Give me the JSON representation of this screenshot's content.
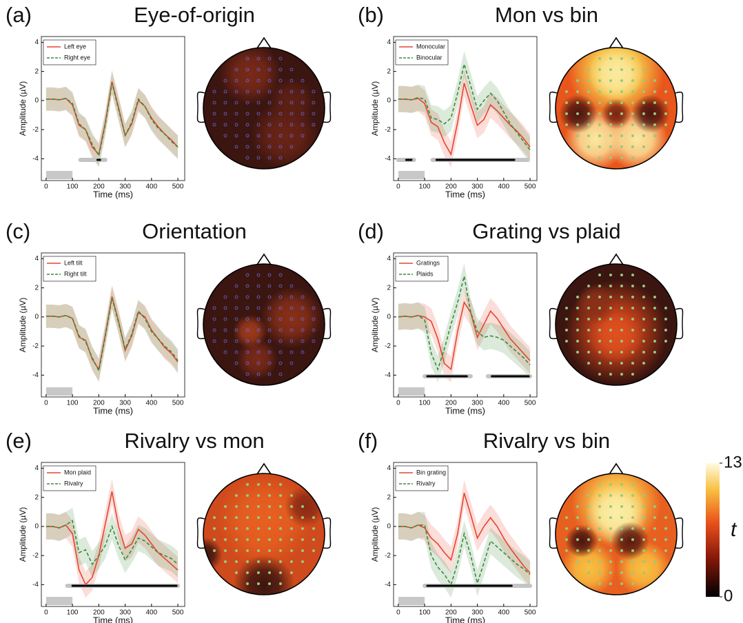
{
  "chart_data": [
    {
      "type": "line",
      "panel_label": "(a)",
      "title": "Eye-of-origin",
      "xlabel": "Time (ms)",
      "ylabel": "Amplitude (µV)",
      "x": [
        0,
        25,
        50,
        75,
        100,
        125,
        150,
        175,
        200,
        225,
        250,
        275,
        300,
        325,
        350,
        375,
        400,
        425,
        450,
        475,
        500
      ],
      "xlim": [
        -18,
        526
      ],
      "ylim": [
        -5.5,
        4.4
      ],
      "xticks": [
        0,
        100,
        200,
        300,
        400,
        500
      ],
      "yticks": [
        -4,
        -2,
        0,
        2,
        4
      ],
      "stimulus": [
        0,
        100
      ],
      "significance": [
        [
          130,
          225
        ]
      ],
      "significance_strong": [
        [
          195,
          205
        ]
      ],
      "series": [
        {
          "name": "Left eye",
          "color": "#e8442c",
          "dash": false,
          "error": 0.8,
          "values": [
            0.1,
            0.1,
            0.05,
            0.15,
            -0.3,
            -1.7,
            -2.0,
            -3.2,
            -3.7,
            -1.5,
            1.3,
            -0.5,
            -2.4,
            -1.6,
            0.0,
            -0.4,
            -1.2,
            -1.8,
            -2.3,
            -2.7,
            -3.2
          ]
        },
        {
          "name": "Right eye",
          "color": "#3a8a3a",
          "dash": true,
          "error": 0.8,
          "values": [
            0.1,
            0.1,
            0.05,
            0.15,
            -0.2,
            -1.6,
            -2.0,
            -3.0,
            -3.8,
            -1.6,
            1.2,
            -0.6,
            -2.4,
            -1.5,
            0.1,
            -0.4,
            -1.3,
            -1.9,
            -2.3,
            -2.8,
            -3.2
          ]
        }
      ]
    },
    {
      "type": "line",
      "panel_label": "(b)",
      "title": "Mon vs bin",
      "xlabel": "Time (ms)",
      "ylabel": "Amplitude (µV)",
      "x": [
        0,
        25,
        50,
        75,
        100,
        125,
        150,
        175,
        200,
        225,
        250,
        275,
        300,
        325,
        350,
        375,
        400,
        425,
        450,
        475,
        500
      ],
      "xlim": [
        -18,
        526
      ],
      "ylim": [
        -5.5,
        4.4
      ],
      "xticks": [
        0,
        100,
        200,
        300,
        400,
        500
      ],
      "yticks": [
        -4,
        -2,
        0,
        2,
        4
      ],
      "stimulus": [
        0,
        100
      ],
      "significance": [
        [
          0,
          60
        ],
        [
          130,
          490
        ]
      ],
      "significance_strong": [
        [
          30,
          50
        ],
        [
          145,
          440
        ]
      ],
      "series": [
        {
          "name": "Monocular",
          "color": "#e8442c",
          "dash": false,
          "error": 0.9,
          "values": [
            0.1,
            0.1,
            0.05,
            0.15,
            -0.2,
            -1.5,
            -1.8,
            -2.9,
            -3.7,
            -1.5,
            1.2,
            -0.3,
            -1.7,
            -1.3,
            -0.3,
            -0.7,
            -1.2,
            -1.7,
            -2.1,
            -2.6,
            -3.2
          ]
        },
        {
          "name": "Binocular",
          "color": "#3a8a3a",
          "dash": true,
          "error": 0.9,
          "values": [
            0.1,
            0.1,
            0.05,
            0.2,
            0.1,
            -1.2,
            -1.3,
            -1.6,
            -1.2,
            0.5,
            2.5,
            1.0,
            -0.6,
            0.0,
            0.5,
            0.0,
            -0.8,
            -1.6,
            -2.2,
            -2.8,
            -3.4
          ]
        }
      ]
    },
    {
      "type": "line",
      "panel_label": "(c)",
      "title": "Orientation",
      "xlabel": "Time (ms)",
      "ylabel": "Amplitude (µV)",
      "x": [
        0,
        25,
        50,
        75,
        100,
        125,
        150,
        175,
        200,
        225,
        250,
        275,
        300,
        325,
        350,
        375,
        400,
        425,
        450,
        475,
        500
      ],
      "xlim": [
        -18,
        526
      ],
      "ylim": [
        -5.5,
        4.4
      ],
      "xticks": [
        0,
        100,
        200,
        300,
        400,
        500
      ],
      "yticks": [
        -4,
        -2,
        0,
        2,
        4
      ],
      "stimulus": [
        0,
        100
      ],
      "significance": [],
      "significance_strong": [],
      "series": [
        {
          "name": "Left tilt",
          "color": "#e8442c",
          "dash": false,
          "error": 0.8,
          "values": [
            0.05,
            0.05,
            0.0,
            0.1,
            -0.1,
            -1.4,
            -1.6,
            -2.9,
            -3.6,
            -1.2,
            1.4,
            -0.3,
            -2.3,
            -1.3,
            0.3,
            0.0,
            -0.9,
            -1.5,
            -2.1,
            -2.5,
            -3.1
          ]
        },
        {
          "name": "Right tilt",
          "color": "#3a8a3a",
          "dash": true,
          "error": 0.8,
          "values": [
            0.05,
            0.05,
            0.0,
            0.1,
            -0.1,
            -1.3,
            -1.7,
            -2.8,
            -3.7,
            -1.3,
            1.3,
            -0.4,
            -2.2,
            -1.2,
            0.4,
            -0.1,
            -1.0,
            -1.5,
            -2.0,
            -2.4,
            -3.0
          ]
        }
      ]
    },
    {
      "type": "line",
      "panel_label": "(d)",
      "title": "Grating vs plaid",
      "xlabel": "Time (ms)",
      "ylabel": "Amplitude (µV)",
      "x": [
        0,
        25,
        50,
        75,
        100,
        125,
        150,
        175,
        200,
        225,
        250,
        275,
        300,
        325,
        350,
        375,
        400,
        425,
        450,
        475,
        500
      ],
      "xlim": [
        -18,
        526
      ],
      "ylim": [
        -5.5,
        4.4
      ],
      "xticks": [
        0,
        100,
        200,
        300,
        400,
        500
      ],
      "yticks": [
        -4,
        -2,
        0,
        2,
        4
      ],
      "stimulus": [
        0,
        100
      ],
      "significance": [
        [
          100,
          275
        ],
        [
          340,
          500
        ]
      ],
      "significance_strong": [
        [
          110,
          260
        ],
        [
          355,
          495
        ]
      ],
      "series": [
        {
          "name": "Gratings",
          "color": "#e8442c",
          "dash": false,
          "error": 0.9,
          "values": [
            0.0,
            0.05,
            0.0,
            0.1,
            0.0,
            -0.3,
            -1.5,
            -3.2,
            -3.6,
            -1.0,
            1.0,
            0.3,
            -1.4,
            -0.5,
            0.4,
            -0.1,
            -0.8,
            -1.5,
            -2.0,
            -2.5,
            -3.0
          ]
        },
        {
          "name": "Plaids",
          "color": "#3a8a3a",
          "dash": true,
          "error": 0.9,
          "values": [
            0.0,
            0.05,
            0.0,
            0.1,
            -0.2,
            -2.5,
            -3.6,
            -2.2,
            -0.5,
            1.0,
            2.8,
            0.3,
            -1.0,
            -1.4,
            -1.3,
            -1.4,
            -1.6,
            -2.0,
            -2.4,
            -2.8,
            -3.3
          ]
        }
      ]
    },
    {
      "type": "line",
      "panel_label": "(e)",
      "title": "Rivalry vs mon",
      "xlabel": "Time (ms)",
      "ylabel": "Amplitude (µV)",
      "x": [
        0,
        25,
        50,
        75,
        100,
        125,
        150,
        175,
        200,
        225,
        250,
        275,
        300,
        325,
        350,
        375,
        400,
        425,
        450,
        475,
        500
      ],
      "xlim": [
        -18,
        526
      ],
      "ylim": [
        -5.5,
        4.4
      ],
      "xticks": [
        0,
        100,
        200,
        300,
        400,
        500
      ],
      "yticks": [
        -4,
        -2,
        0,
        2,
        4
      ],
      "stimulus": [
        0,
        100
      ],
      "significance": [
        [
          80,
          500
        ]
      ],
      "significance_strong": [
        [
          100,
          495
        ]
      ],
      "series": [
        {
          "name": "Mon plaid",
          "color": "#e8442c",
          "dash": false,
          "error": 0.9,
          "values": [
            0.0,
            0.0,
            -0.1,
            0.1,
            -0.5,
            -3.0,
            -4.0,
            -3.5,
            -2.0,
            0.2,
            2.4,
            0.0,
            -1.5,
            -1.2,
            -0.2,
            -0.6,
            -1.2,
            -1.8,
            -2.2,
            -2.6,
            -3.0
          ]
        },
        {
          "name": "Rivalry",
          "color": "#3a8a3a",
          "dash": true,
          "error": 0.9,
          "values": [
            0.0,
            0.0,
            -0.1,
            0.1,
            0.4,
            -1.8,
            -1.6,
            -2.6,
            -2.0,
            -1.3,
            0.0,
            -1.3,
            -2.3,
            -1.6,
            -0.8,
            -1.0,
            -1.4,
            -1.8,
            -2.0,
            -2.2,
            -2.6
          ]
        }
      ]
    },
    {
      "type": "line",
      "panel_label": "(f)",
      "title": "Rivalry vs bin",
      "xlabel": "Time (ms)",
      "ylabel": "Amplitude (µV)",
      "x": [
        0,
        25,
        50,
        75,
        100,
        125,
        150,
        175,
        200,
        225,
        250,
        275,
        300,
        325,
        350,
        375,
        400,
        425,
        450,
        475,
        500
      ],
      "xlim": [
        -18,
        526
      ],
      "ylim": [
        -5.5,
        4.4
      ],
      "xticks": [
        0,
        100,
        200,
        300,
        400,
        500
      ],
      "yticks": [
        -4,
        -2,
        0,
        2,
        4
      ],
      "stimulus": [
        0,
        100
      ],
      "significance": [
        [
          100,
          500
        ]
      ],
      "significance_strong": [
        [
          110,
          430
        ]
      ],
      "series": [
        {
          "name": "Bin grating",
          "color": "#e8442c",
          "dash": false,
          "error": 0.9,
          "values": [
            0.0,
            0.0,
            -0.1,
            0.1,
            -0.1,
            -0.8,
            -1.2,
            -1.8,
            -2.3,
            -0.5,
            2.3,
            0.8,
            -0.8,
            0.0,
            0.6,
            0.0,
            -0.8,
            -1.5,
            -2.1,
            -2.7,
            -3.2
          ]
        },
        {
          "name": "Rivalry",
          "color": "#3a8a3a",
          "dash": true,
          "error": 0.9,
          "values": [
            0.0,
            0.0,
            -0.1,
            0.1,
            0.1,
            -2.0,
            -2.8,
            -3.3,
            -4.0,
            -2.5,
            -0.5,
            -2.0,
            -3.9,
            -2.5,
            -1.0,
            -1.4,
            -1.8,
            -2.2,
            -2.6,
            -2.9,
            -3.3
          ]
        }
      ]
    }
  ],
  "colorbar": {
    "label": "t",
    "lim": [
      0,
      13
    ],
    "ticks": [
      0,
      13
    ]
  }
}
